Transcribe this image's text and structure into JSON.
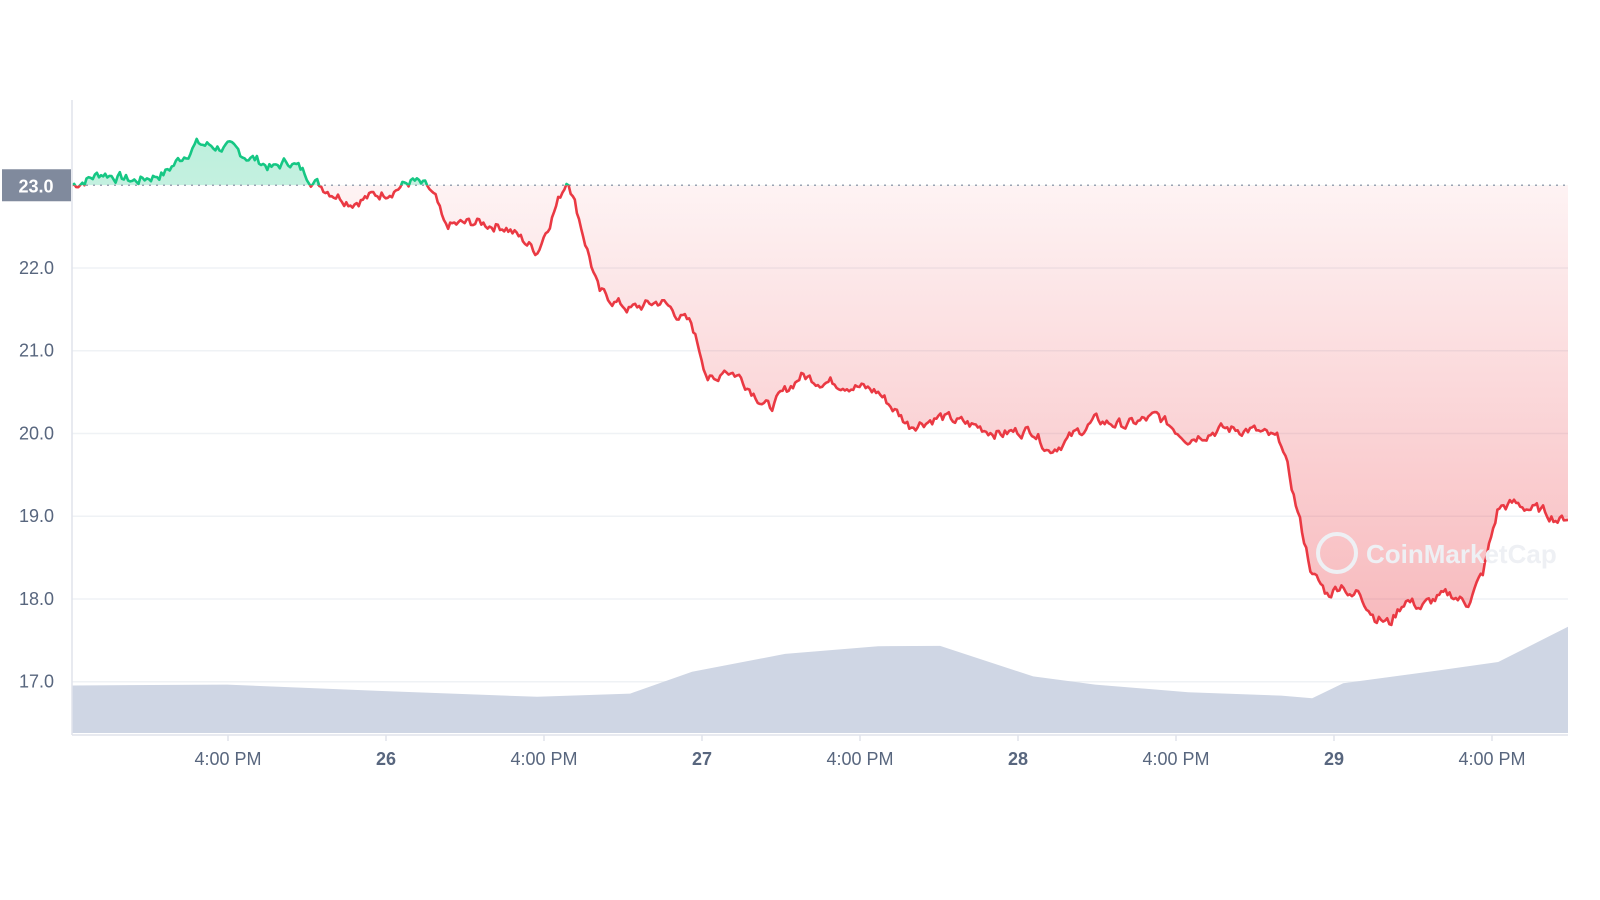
{
  "chart_data": {
    "type": "line",
    "title": "",
    "xlabel": "",
    "ylabel": "",
    "ylim": [
      16.45,
      24.1
    ],
    "grid": true,
    "y_ticks": [
      "17.0",
      "18.0",
      "19.0",
      "20.0",
      "21.0",
      "22.0"
    ],
    "x_ticks": [
      {
        "label": "4:00 PM",
        "day_marker": false
      },
      {
        "label": "26",
        "day_marker": true
      },
      {
        "label": "4:00 PM",
        "day_marker": false
      },
      {
        "label": "27",
        "day_marker": true
      },
      {
        "label": "4:00 PM",
        "day_marker": false
      },
      {
        "label": "28",
        "day_marker": true
      },
      {
        "label": "4:00 PM",
        "day_marker": false
      },
      {
        "label": "29",
        "day_marker": true
      },
      {
        "label": "4:00 PM",
        "day_marker": false
      }
    ],
    "reference": {
      "value": 23.0,
      "label": "23.0"
    },
    "x_range_hours": [
      -10,
      86.5
    ],
    "series": [
      {
        "type": "price",
        "x_hours": [
          -10,
          -8,
          -6,
          -4,
          -2,
          0,
          2,
          3,
          4,
          6,
          8,
          10,
          12,
          13,
          13.5,
          14,
          16,
          18,
          20,
          22,
          24,
          26,
          28,
          30,
          31,
          31.5,
          32,
          32.5,
          33,
          34,
          35,
          36,
          37,
          38,
          40,
          42,
          44,
          46,
          48,
          50,
          52,
          53,
          54,
          56,
          58,
          60,
          62,
          64,
          66,
          68,
          70,
          71,
          72,
          72.5,
          73,
          74,
          75,
          76,
          77,
          78,
          79,
          80,
          81,
          82,
          83,
          84,
          85,
          86,
          86.5
        ],
        "values": [
          23.0,
          23.15,
          23.05,
          23.15,
          23.5,
          23.45,
          23.3,
          23.2,
          23.3,
          23.0,
          22.8,
          22.9,
          23.05,
          22.95,
          22.8,
          22.5,
          22.55,
          22.5,
          22.2,
          23.1,
          21.7,
          21.5,
          21.6,
          21.3,
          20.7,
          20.6,
          20.8,
          20.75,
          20.7,
          20.5,
          20.3,
          20.5,
          20.7,
          20.65,
          20.6,
          20.5,
          20.1,
          20.2,
          20.1,
          20.0,
          20.05,
          19.8,
          19.9,
          20.15,
          20.1,
          20.2,
          19.95,
          20.05,
          20.05,
          19.9,
          18.3,
          18.05,
          18.2,
          18.0,
          18.1,
          17.8,
          17.7,
          18.0,
          17.9,
          18.0,
          18.05,
          17.95,
          18.3,
          19.1,
          19.15,
          19.1,
          19.05,
          18.95,
          19.0
        ],
        "colors": {
          "above": "#16c784",
          "below": "#ea3943"
        }
      },
      {
        "type": "volume-area",
        "x_hours": [
          -10,
          0,
          10,
          20,
          26,
          30,
          36,
          42,
          46,
          52,
          56,
          62,
          68,
          70,
          72,
          78,
          82,
          86.5
        ],
        "values": [
          0.42,
          0.42,
          0.38,
          0.32,
          0.34,
          0.55,
          0.7,
          0.76,
          0.78,
          0.5,
          0.42,
          0.37,
          0.33,
          0.3,
          0.45,
          0.55,
          0.62,
          0.95
        ],
        "color": "#cfd6e4"
      }
    ],
    "watermark": "CoinMarketCap",
    "colors": {
      "grid": "#eff2f5",
      "axis": "#e0e3eb",
      "ref_badge": "#808a9d",
      "tick_text": "#58667e"
    }
  }
}
